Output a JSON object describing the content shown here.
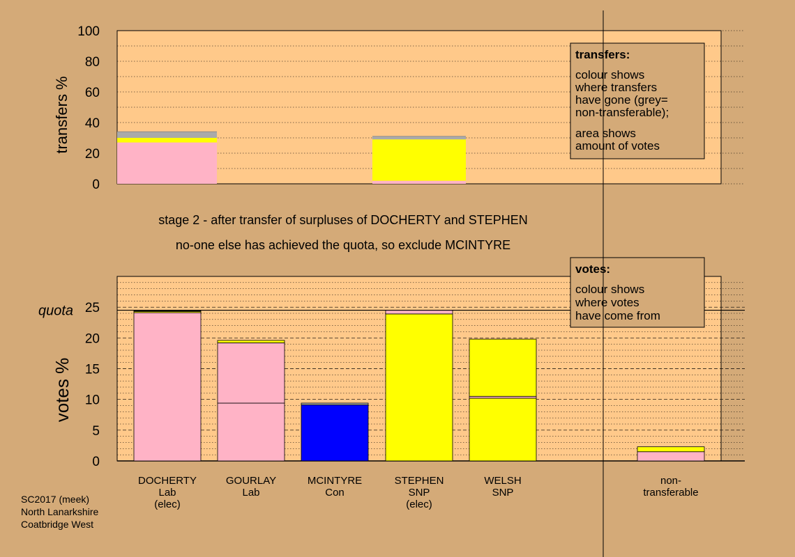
{
  "colors": {
    "page_bg": "#d4aa78",
    "plot_bg": "#ffc98a",
    "box_bg": "#d4aa78",
    "pink": "#ffb3c6",
    "yellow": "#ffff00",
    "grey": "#aaaaaa",
    "blue": "#0000ff",
    "black": "#000000"
  },
  "stage_text": {
    "line1": "stage 2 - after transfer of surpluses of DOCHERTY and STEPHEN",
    "line2": "no-one else has achieved the quota, so exclude MCINTYRE"
  },
  "source_note": [
    "SC2017 (meek)",
    "North Lanarkshire",
    "Coatbridge West"
  ],
  "chart_data": [
    {
      "type": "bar",
      "stacked": true,
      "title": "",
      "ylabel": "transfers %",
      "ylim": [
        0,
        100
      ],
      "yticks": [
        0,
        20,
        40,
        60,
        80,
        100
      ],
      "categories": [
        "DOCHERTY",
        "MCINTYRE",
        "STEPHEN"
      ],
      "series": [
        {
          "color": "pink",
          "values": [
            27,
            0,
            2
          ]
        },
        {
          "color": "yellow",
          "values": [
            3,
            0,
            27
          ]
        },
        {
          "color": "grey",
          "values": [
            4,
            0,
            2
          ]
        }
      ],
      "legend_box": {
        "title": "transfers:",
        "lines": [
          "colour shows",
          "where transfers",
          "have gone (grey=",
          "non-transferable);"
        ],
        "lines2": [
          "area shows",
          "amount of votes"
        ]
      }
    },
    {
      "type": "bar",
      "stacked": true,
      "title": "",
      "ylabel": "votes %",
      "ylim": [
        0,
        30
      ],
      "yticks": [
        0,
        5,
        10,
        15,
        20,
        25
      ],
      "quota": 24.5,
      "quota_label": "quota",
      "categories": [
        {
          "name": "DOCHERTY",
          "party": "Lab",
          "note": "(elec)"
        },
        {
          "name": "GOURLAY",
          "party": "Lab",
          "note": ""
        },
        {
          "name": "MCINTYRE",
          "party": "Con",
          "note": ""
        },
        {
          "name": "STEPHEN",
          "party": "SNP",
          "note": "(elec)"
        },
        {
          "name": "WELSH",
          "party": "SNP",
          "note": ""
        },
        {
          "name": "non-",
          "party": "transferable",
          "note": ""
        }
      ],
      "stacks": [
        [
          {
            "color": "pink",
            "value": 24.1
          },
          {
            "color": "yellow",
            "value": 0.2
          },
          {
            "color": "grey",
            "value": 0.1
          }
        ],
        [
          {
            "color": "pink",
            "value": 9.4
          },
          {
            "color": "pink",
            "value": 9.8
          },
          {
            "color": "yellow",
            "value": 0.4
          }
        ],
        [
          {
            "color": "blue",
            "value": 9.1
          },
          {
            "color": "grey",
            "value": 0.3
          }
        ],
        [
          {
            "color": "yellow",
            "value": 23.9
          },
          {
            "color": "pink",
            "value": 0.6
          }
        ],
        [
          {
            "color": "yellow",
            "value": 10.2
          },
          {
            "color": "pink",
            "value": 0.3
          },
          {
            "color": "yellow",
            "value": 9.3
          }
        ],
        [
          {
            "color": "pink",
            "value": 1.5
          },
          {
            "color": "yellow",
            "value": 0.8
          }
        ]
      ],
      "legend_box": {
        "title": "votes:",
        "lines": [
          "colour shows",
          "where votes",
          "have come from"
        ]
      }
    }
  ]
}
